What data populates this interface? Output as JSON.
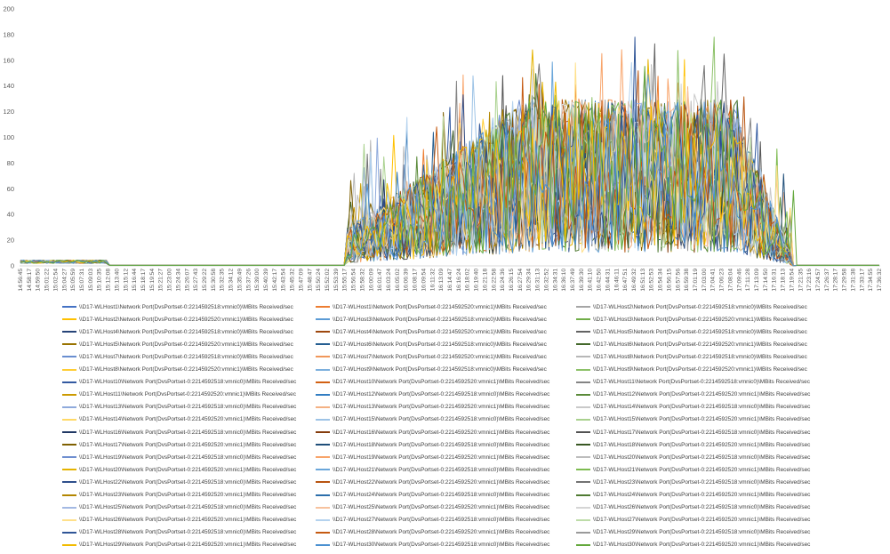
{
  "chart_data": {
    "type": "line",
    "title": "",
    "xlabel": "",
    "ylabel": "",
    "ylim": [
      0,
      200
    ],
    "yticks": [
      0,
      20,
      40,
      60,
      80,
      100,
      120,
      140,
      160,
      180,
      200
    ],
    "grid": false,
    "legend_position": "bottom",
    "x_tick_labels": [
      "14:56:45",
      "14:58:17",
      "14:59:50",
      "15:01:22",
      "15:02:54",
      "15:04:27",
      "15:05:59",
      "15:07:31",
      "15:09:03",
      "15:10:35",
      "15:12:08",
      "15:13:40",
      "15:15:12",
      "15:16:44",
      "15:18:17",
      "15:19:54",
      "15:21:27",
      "15:23:00",
      "15:24:34",
      "15:26:07",
      "15:27:43",
      "15:29:22",
      "15:30:58",
      "15:32:35",
      "15:34:12",
      "15:35:49",
      "15:37:26",
      "15:39:00",
      "15:40:39",
      "15:42:17",
      "15:43:54",
      "15:45:32",
      "15:47:09",
      "15:48:47",
      "15:50:24",
      "15:52:02",
      "15:53:39",
      "15:55:17",
      "15:56:54",
      "15:58:32",
      "16:00:09",
      "16:01:47",
      "16:03:24",
      "16:05:02",
      "16:06:39",
      "16:08:17",
      "16:09:54",
      "16:11:32",
      "16:13:09",
      "16:14:47",
      "16:16:24",
      "16:18:02",
      "16:19:40",
      "16:21:18",
      "16:22:58",
      "16:24:36",
      "16:26:15",
      "16:27:54",
      "16:29:34",
      "16:31:13",
      "16:32:52",
      "16:34:31",
      "16:36:10",
      "16:37:49",
      "16:39:30",
      "16:41:10",
      "16:42:50",
      "16:44:31",
      "16:46:11",
      "16:47:51",
      "16:49:32",
      "16:51:13",
      "16:52:53",
      "16:54:34",
      "16:56:15",
      "16:57:56",
      "16:59:38",
      "17:01:19",
      "17:03:00",
      "17:04:41",
      "17:06:23",
      "17:08:04",
      "17:09:46",
      "17:11:28",
      "17:13:09",
      "17:14:50",
      "17:16:31",
      "17:18:13",
      "17:19:54",
      "17:21:35",
      "17:23:16",
      "17:24:57",
      "17:26:37",
      "17:28:17",
      "17:29:58",
      "17:31:38",
      "17:33:17",
      "17:34:55",
      "17:36:32"
    ],
    "series_summary": [
      {
        "phase": "idle-start",
        "from_index": 0,
        "to_index": 10,
        "approx_level": 2
      },
      {
        "phase": "idle",
        "from_index": 10,
        "to_index": 37,
        "approx_level": 0
      },
      {
        "phase": "ramp-up",
        "from_index": 37,
        "to_index": 58,
        "approx_level": 50
      },
      {
        "phase": "peak",
        "from_index": 58,
        "to_index": 82,
        "approx_level": 70,
        "approx_max": 178
      },
      {
        "phase": "ramp-down",
        "from_index": 82,
        "to_index": 88,
        "approx_level": 25
      },
      {
        "phase": "idle-end",
        "from_index": 88,
        "to_index": 98,
        "approx_level": 0
      }
    ],
    "series": [
      {
        "name": "\\\\D17-WLHost1\\Network Port(DvsPortset-0:2214592518:vmnic0)\\MBits Received/sec",
        "color": "#4472C4"
      },
      {
        "name": "\\\\D17-WLHost1\\Network Port(DvsPortset-0:2214592520:vmnic1)\\MBits Received/sec",
        "color": "#ED7D31"
      },
      {
        "name": "\\\\D17-WLHost2\\Network Port(DvsPortset-0:2214592518:vmnic0)\\MBits Received/sec",
        "color": "#A5A5A5"
      },
      {
        "name": "\\\\D17-WLHost2\\Network Port(DvsPortset-0:2214592520:vmnic1)\\MBits Received/sec",
        "color": "#FFC000"
      },
      {
        "name": "\\\\D17-WLHost3\\Network Port(DvsPortset-0:2214592518:vmnic0)\\MBits Received/sec",
        "color": "#5B9BD5"
      },
      {
        "name": "\\\\D17-WLHost3\\Network Port(DvsPortset-0:2214592520:vmnic1)\\MBits Received/sec",
        "color": "#70AD47"
      },
      {
        "name": "\\\\D17-WLHost4\\Network Port(DvsPortset-0:2214592518:vmnic0)\\MBits Received/sec",
        "color": "#264478"
      },
      {
        "name": "\\\\D17-WLHost4\\Network Port(DvsPortset-0:2214592520:vmnic1)\\MBits Received/sec",
        "color": "#9E480E"
      },
      {
        "name": "\\\\D17-WLHost5\\Network Port(DvsPortset-0:2214592518:vmnic0)\\MBits Received/sec",
        "color": "#636363"
      },
      {
        "name": "\\\\D17-WLHost5\\Network Port(DvsPortset-0:2214592520:vmnic1)\\MBits Received/sec",
        "color": "#997300"
      },
      {
        "name": "\\\\D17-WLHost6\\Network Port(DvsPortset-0:2214592518:vmnic0)\\MBits Received/sec",
        "color": "#255E91"
      },
      {
        "name": "\\\\D17-WLHost6\\Network Port(DvsPortset-0:2214592520:vmnic1)\\MBits Received/sec",
        "color": "#43682B"
      },
      {
        "name": "\\\\D17-WLHost7\\Network Port(DvsPortset-0:2214592518:vmnic0)\\MBits Received/sec",
        "color": "#698ED0"
      },
      {
        "name": "\\\\D17-WLHost7\\Network Port(DvsPortset-0:2214592520:vmnic1)\\MBits Received/sec",
        "color": "#F1975A"
      },
      {
        "name": "\\\\D17-WLHost8\\Network Port(DvsPortset-0:2214592518:vmnic0)\\MBits Received/sec",
        "color": "#B7B7B7"
      },
      {
        "name": "\\\\D17-WLHost8\\Network Port(DvsPortset-0:2214592520:vmnic1)\\MBits Received/sec",
        "color": "#FFCD33"
      },
      {
        "name": "\\\\D17-WLHost9\\Network Port(DvsPortset-0:2214592518:vmnic0)\\MBits Received/sec",
        "color": "#7CAFDD"
      },
      {
        "name": "\\\\D17-WLHost9\\Network Port(DvsPortset-0:2214592520:vmnic1)\\MBits Received/sec",
        "color": "#8CC168"
      },
      {
        "name": "\\\\D17-WLHost10\\Network Port(DvsPortset-0:2214592518:vmnic0)\\MBits Received/sec",
        "color": "#335AA1"
      },
      {
        "name": "\\\\D17-WLHost10\\Network Port(DvsPortset-0:2214592520:vmnic1)\\MBits Received/sec",
        "color": "#D26012"
      },
      {
        "name": "\\\\D17-WLHost11\\Network Port(DvsPortset-0:2214592518:vmnic0)\\MBits Received/sec",
        "color": "#848484"
      },
      {
        "name": "\\\\D17-WLHost11\\Network Port(DvsPortset-0:2214592520:vmnic1)\\MBits Received/sec",
        "color": "#CC9A00"
      },
      {
        "name": "\\\\D17-WLHost12\\Network Port(DvsPortset-0:2214592518:vmnic0)\\MBits Received/sec",
        "color": "#327DC2"
      },
      {
        "name": "\\\\D17-WLHost12\\Network Port(DvsPortset-0:2214592520:vmnic1)\\MBits Received/sec",
        "color": "#5A8A39"
      },
      {
        "name": "\\\\D17-WLHost13\\Network Port(DvsPortset-0:2214592518:vmnic0)\\MBits Received/sec",
        "color": "#8FAADC"
      },
      {
        "name": "\\\\D17-WLHost13\\Network Port(DvsPortset-0:2214592520:vmnic1)\\MBits Received/sec",
        "color": "#F4B183"
      },
      {
        "name": "\\\\D17-WLHost14\\Network Port(DvsPortset-0:2214592518:vmnic0)\\MBits Received/sec",
        "color": "#C9C9C9"
      },
      {
        "name": "\\\\D17-WLHost14\\Network Port(DvsPortset-0:2214592520:vmnic1)\\MBits Received/sec",
        "color": "#FFD966"
      },
      {
        "name": "\\\\D17-WLHost15\\Network Port(DvsPortset-0:2214592518:vmnic0)\\MBits Received/sec",
        "color": "#9DC3E6"
      },
      {
        "name": "\\\\D17-WLHost15\\Network Port(DvsPortset-0:2214592520:vmnic1)\\MBits Received/sec",
        "color": "#A9D18E"
      },
      {
        "name": "\\\\D17-WLHost16\\Network Port(DvsPortset-0:2214592518:vmnic0)\\MBits Received/sec",
        "color": "#203864"
      },
      {
        "name": "\\\\D17-WLHost16\\Network Port(DvsPortset-0:2214592520:vmnic1)\\MBits Received/sec",
        "color": "#843C0C"
      },
      {
        "name": "\\\\D17-WLHost17\\Network Port(DvsPortset-0:2214592518:vmnic0)\\MBits Received/sec",
        "color": "#525252"
      },
      {
        "name": "\\\\D17-WLHost17\\Network Port(DvsPortset-0:2214592520:vmnic1)\\MBits Received/sec",
        "color": "#7F6000"
      },
      {
        "name": "\\\\D17-WLHost18\\Network Port(DvsPortset-0:2214592518:vmnic0)\\MBits Received/sec",
        "color": "#1F4E79"
      },
      {
        "name": "\\\\D17-WLHost18\\Network Port(DvsPortset-0:2214592520:vmnic1)\\MBits Received/sec",
        "color": "#385723"
      },
      {
        "name": "\\\\D17-WLHost19\\Network Port(DvsPortset-0:2214592518:vmnic0)\\MBits Received/sec",
        "color": "#6F8FD0"
      },
      {
        "name": "\\\\D17-WLHost19\\Network Port(DvsPortset-0:2214592520:vmnic1)\\MBits Received/sec",
        "color": "#F8A46A"
      },
      {
        "name": "\\\\D17-WLHost20\\Network Port(DvsPortset-0:2214592518:vmnic0)\\MBits Received/sec",
        "color": "#BDBDBD"
      },
      {
        "name": "\\\\D17-WLHost20\\Network Port(DvsPortset-0:2214592520:vmnic1)\\MBits Received/sec",
        "color": "#E5B300"
      },
      {
        "name": "\\\\D17-WLHost21\\Network Port(DvsPortset-0:2214592518:vmnic0)\\MBits Received/sec",
        "color": "#6AA6DA"
      },
      {
        "name": "\\\\D17-WLHost21\\Network Port(DvsPortset-0:2214592520:vmnic1)\\MBits Received/sec",
        "color": "#7DBB50"
      },
      {
        "name": "\\\\D17-WLHost22\\Network Port(DvsPortset-0:2214592518:vmnic0)\\MBits Received/sec",
        "color": "#2E4F8C"
      },
      {
        "name": "\\\\D17-WLHost22\\Network Port(DvsPortset-0:2214592520:vmnic1)\\MBits Received/sec",
        "color": "#B85410"
      },
      {
        "name": "\\\\D17-WLHost23\\Network Port(DvsPortset-0:2214592518:vmnic0)\\MBits Received/sec",
        "color": "#737373"
      },
      {
        "name": "\\\\D17-WLHost23\\Network Port(DvsPortset-0:2214592520:vmnic1)\\MBits Received/sec",
        "color": "#B38600"
      },
      {
        "name": "\\\\D17-WLHost24\\Network Port(DvsPortset-0:2214592518:vmnic0)\\MBits Received/sec",
        "color": "#2C6EAB"
      },
      {
        "name": "\\\\D17-WLHost24\\Network Port(DvsPortset-0:2214592520:vmnic1)\\MBits Received/sec",
        "color": "#4F7A32"
      },
      {
        "name": "\\\\D17-WLHost25\\Network Port(DvsPortset-0:2214592518:vmnic0)\\MBits Received/sec",
        "color": "#A3B9E3"
      },
      {
        "name": "\\\\D17-WLHost25\\Network Port(DvsPortset-0:2214592520:vmnic1)\\MBits Received/sec",
        "color": "#F7C29E"
      },
      {
        "name": "\\\\D17-WLHost26\\Network Port(DvsPortset-0:2214592518:vmnic0)\\MBits Received/sec",
        "color": "#D5D5D5"
      },
      {
        "name": "\\\\D17-WLHost26\\Network Port(DvsPortset-0:2214592520:vmnic1)\\MBits Received/sec",
        "color": "#FFE08A"
      },
      {
        "name": "\\\\D17-WLHost27\\Network Port(DvsPortset-0:2214592518:vmnic0)\\MBits Received/sec",
        "color": "#B4D2EE"
      },
      {
        "name": "\\\\D17-WLHost27\\Network Port(DvsPortset-0:2214592520:vmnic1)\\MBits Received/sec",
        "color": "#BDDCA8"
      },
      {
        "name": "\\\\D17-WLHost28\\Network Port(DvsPortset-0:2214592518:vmnic0)\\MBits Received/sec",
        "color": "#2F5597"
      },
      {
        "name": "\\\\D17-WLHost28\\Network Port(DvsPortset-0:2214592520:vmnic1)\\MBits Received/sec",
        "color": "#C55A11"
      },
      {
        "name": "\\\\D17-WLHost29\\Network Port(DvsPortset-0:2214592518:vmnic0)\\MBits Received/sec",
        "color": "#9A9A9A"
      },
      {
        "name": "\\\\D17-WLHost29\\Network Port(DvsPortset-0:2214592520:vmnic1)\\MBits Received/sec",
        "color": "#F2BB00"
      },
      {
        "name": "\\\\D17-WLHost30\\Network Port(DvsPortset-0:2214592518:vmnic0)\\MBits Received/sec",
        "color": "#4A90D0"
      },
      {
        "name": "\\\\D17-WLHost30\\Network Port(DvsPortset-0:2214592520:vmnic1)\\MBits Received/sec",
        "color": "#63A83C"
      }
    ]
  }
}
